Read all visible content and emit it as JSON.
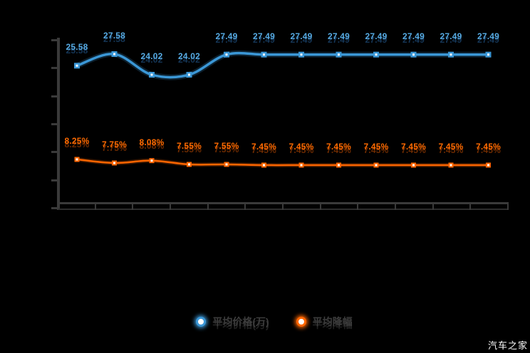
{
  "page": {
    "background": "#000000",
    "watermark": "汽车之家"
  },
  "legend": {
    "items": [
      {
        "label": "平均价格(万)",
        "color": "#3b97d6"
      },
      {
        "label": "平均降幅",
        "color": "#ff6600"
      }
    ]
  },
  "chart_data": {
    "type": "line",
    "title": "",
    "legend_position": "bottom",
    "grid": false,
    "x_axis": {
      "labels_visible": false,
      "tick_count": 13
    },
    "y_axis": {
      "labels_visible": false,
      "tick_count": 7
    },
    "series": [
      {
        "name": "平均价格(万)",
        "color": "#3b97d6",
        "values": [
          25.58,
          27.58,
          24.02,
          24.02,
          27.49,
          27.49,
          27.49,
          27.49,
          27.49,
          27.49,
          27.49,
          27.49
        ],
        "labels": [
          "25.58",
          "27.58",
          "24.02",
          "24.02",
          "27.49",
          "27.49",
          "27.49",
          "27.49",
          "27.49",
          "27.49",
          "27.49",
          "27.49"
        ]
      },
      {
        "name": "平均降幅",
        "color": "#ff6600",
        "values": [
          8.25,
          7.75,
          8.08,
          7.55,
          7.55,
          7.45,
          7.45,
          7.45,
          7.45,
          7.45,
          7.45,
          7.45
        ],
        "labels": [
          "8.25%",
          "7.75%",
          "8.08%",
          "7.55%",
          "7.55%",
          "7.45%",
          "7.45%",
          "7.45%",
          "7.45%",
          "7.45%",
          "7.45%",
          "7.45%"
        ]
      }
    ]
  }
}
